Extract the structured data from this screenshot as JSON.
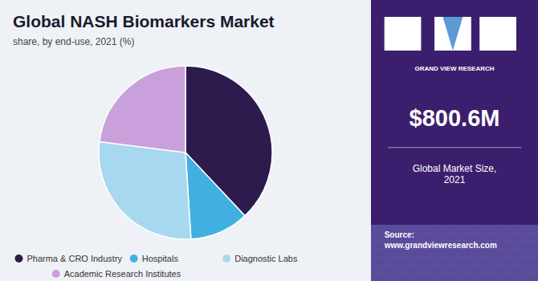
{
  "chart_data": {
    "type": "pie",
    "title": "Global NASH Biomarkers Market",
    "subtitle": "share, by end-use, 2021 (%)",
    "categories": [
      "Pharma & CRO Industry",
      "Hospitals",
      "Diagnostic Labs",
      "Academic Research Institutes"
    ],
    "values": [
      38,
      11,
      28,
      23
    ],
    "colors": [
      "#2d1b4e",
      "#40b0e0",
      "#a8d8f0",
      "#c9a0dc"
    ],
    "legend": "bottom",
    "annotations": [
      "GRAND VIEW RESEARCH",
      "$800.6M",
      "Global Market Size,\n2021",
      "Source:\nwww.grandviewresearch.com"
    ]
  }
}
